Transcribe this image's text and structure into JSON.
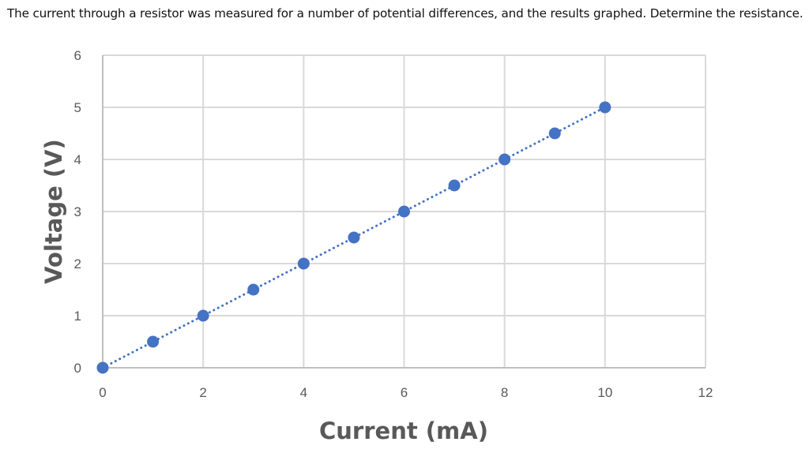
{
  "question": {
    "text": "The current through a resistor was measured for a number of potential differences, and the results graphed.  Determine the resistance."
  },
  "chart_data": {
    "type": "scatter",
    "title": "",
    "xlabel": "Current (mA)",
    "ylabel": "Voltage (V)",
    "xlim": [
      0,
      12
    ],
    "ylim": [
      0,
      6
    ],
    "x_ticks": [
      "0",
      "2",
      "4",
      "6",
      "8",
      "10",
      "12"
    ],
    "y_ticks": [
      "0",
      "1",
      "2",
      "3",
      "4",
      "5",
      "6"
    ],
    "grid": true,
    "legend": "none",
    "trendline": {
      "style": "dotted",
      "type": "linear",
      "from": [
        0,
        0
      ],
      "to": [
        10,
        5
      ]
    },
    "series": [
      {
        "name": "Voltage vs Current",
        "color": "#4472C4",
        "x": [
          0,
          1,
          2,
          3,
          4,
          5,
          6,
          7,
          8,
          9,
          10
        ],
        "y": [
          0,
          0.5,
          1,
          1.5,
          2,
          2.5,
          3,
          3.5,
          4,
          4.5,
          5
        ]
      }
    ]
  },
  "colors": {
    "marker": "#4472C4",
    "grid": "#d9d9d9",
    "text": "#595959"
  }
}
